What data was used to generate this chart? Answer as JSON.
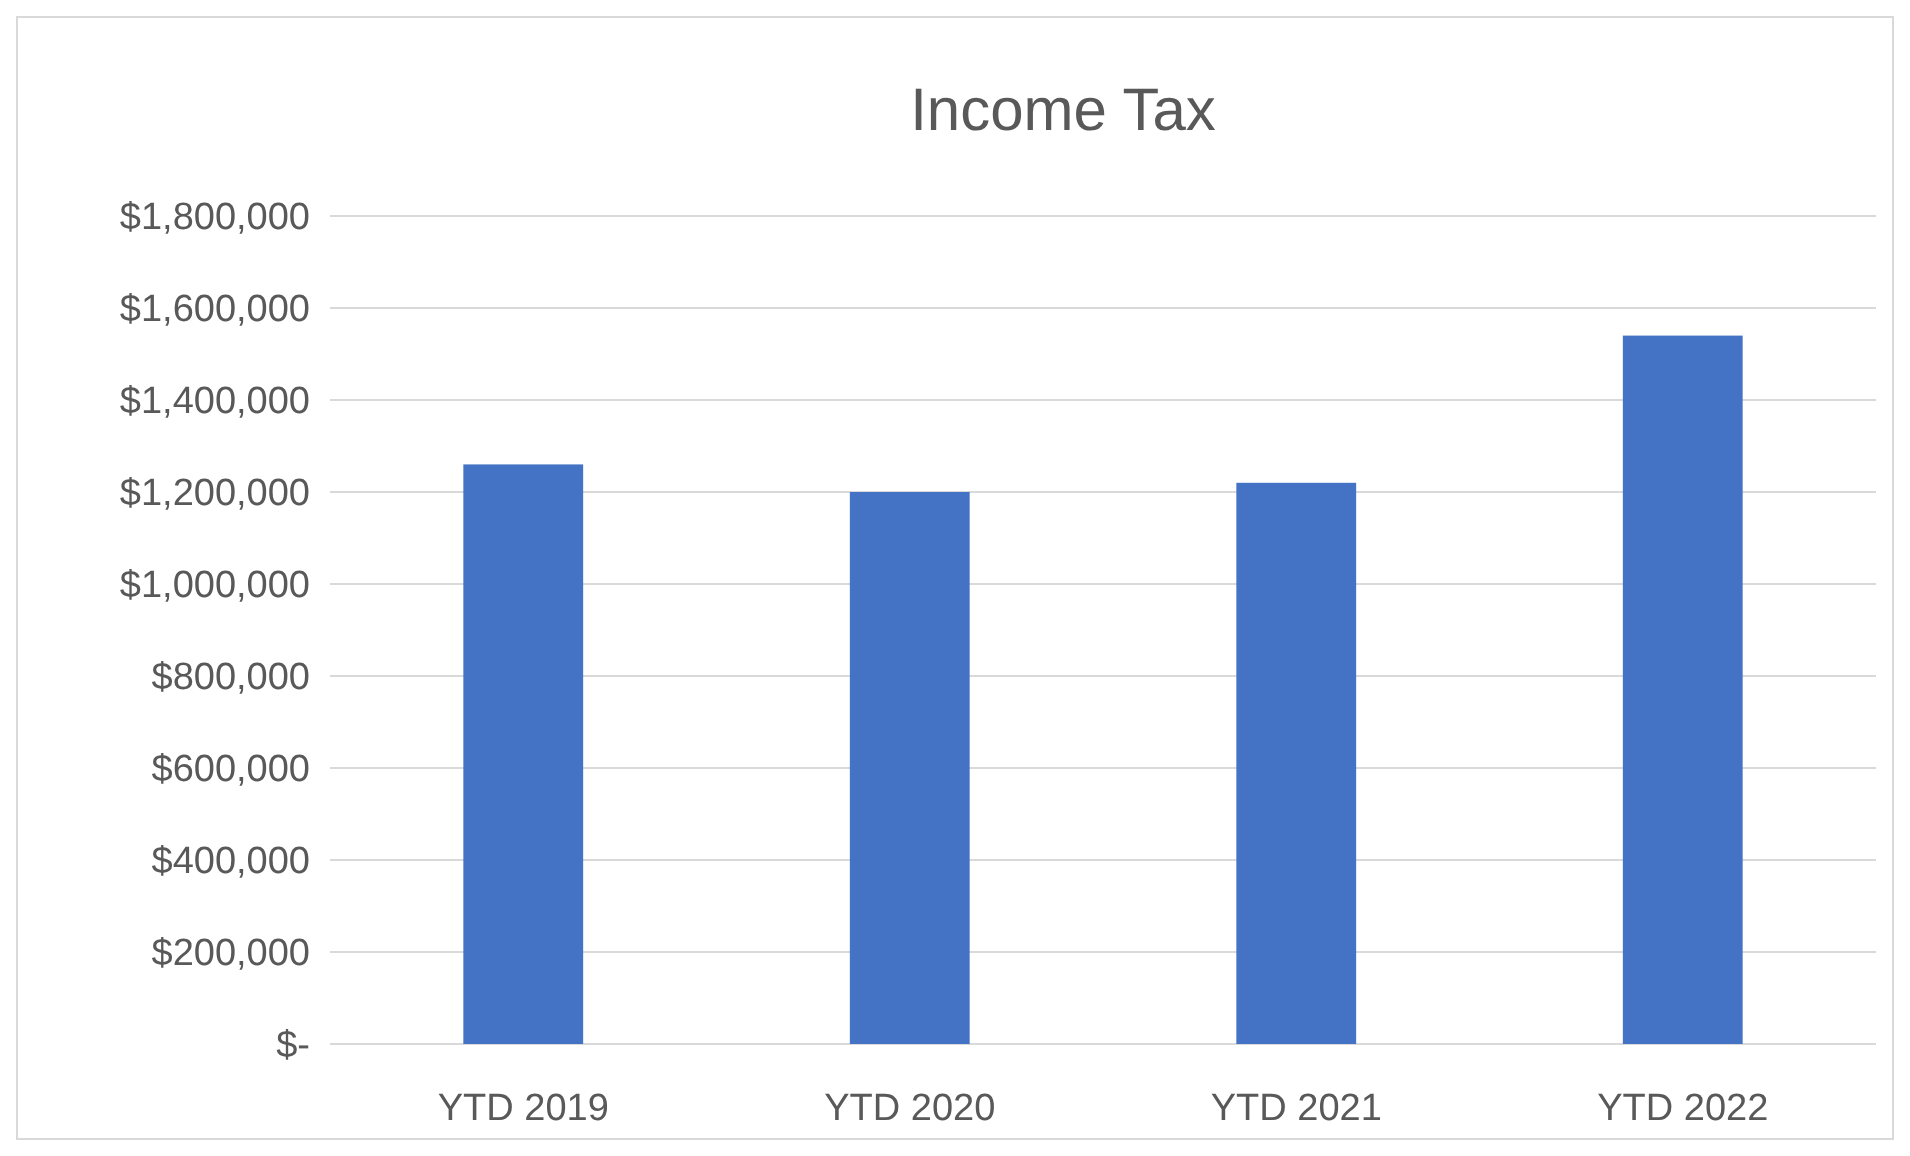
{
  "chart_data": {
    "type": "bar",
    "title": "Income Tax",
    "categories": [
      "YTD 2019",
      "YTD 2020",
      "YTD 2021",
      "YTD 2022"
    ],
    "values": [
      1260000,
      1200000,
      1220000,
      1540000
    ],
    "color": "#4472c4",
    "ylim": [
      0,
      1800000
    ],
    "yticks": [
      {
        "value": 0,
        "label": "$-"
      },
      {
        "value": 200000,
        "label": "$200,000"
      },
      {
        "value": 400000,
        "label": "$400,000"
      },
      {
        "value": 600000,
        "label": "$600,000"
      },
      {
        "value": 800000,
        "label": "$800,000"
      },
      {
        "value": 1000000,
        "label": "$1,000,000"
      },
      {
        "value": 1200000,
        "label": "$1,200,000"
      },
      {
        "value": 1400000,
        "label": "$1,400,000"
      },
      {
        "value": 1600000,
        "label": "$1,600,000"
      },
      {
        "value": 1800000,
        "label": "$1,800,000"
      }
    ],
    "grid": "y"
  }
}
